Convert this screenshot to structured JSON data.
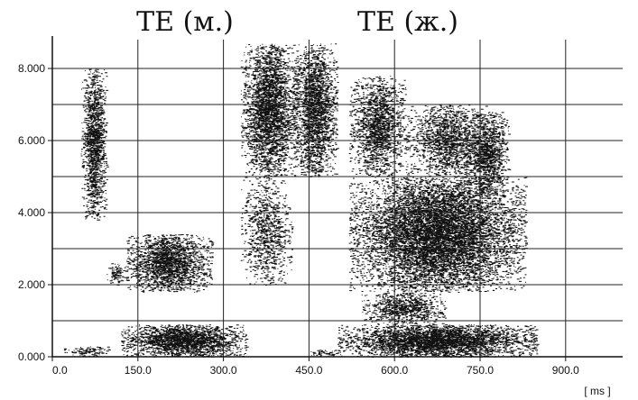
{
  "chart_data": {
    "type": "heatmap",
    "titles": [
      {
        "text": "TE (м.)",
        "x_center": 205
      },
      {
        "text": "TE (ж.)",
        "x_center": 652
      }
    ],
    "x_unit_label": "[ ms ]",
    "xlim": [
      0,
      1000
    ],
    "ylim": [
      0,
      8800
    ],
    "x_ticks": [
      {
        "value": 0,
        "label": "0.0"
      },
      {
        "value": 150,
        "label": "150.0"
      },
      {
        "value": 300,
        "label": "300.0"
      },
      {
        "value": 450,
        "label": "450.0"
      },
      {
        "value": 600,
        "label": "600.0"
      },
      {
        "value": 750,
        "label": "750.0"
      },
      {
        "value": 900,
        "label": "900.0"
      }
    ],
    "y_ticks": [
      {
        "value": 0,
        "label": "0.000"
      },
      {
        "value": 2000,
        "label": "2.000"
      },
      {
        "value": 4000,
        "label": "4.000"
      },
      {
        "value": 6000,
        "label": "6.000"
      },
      {
        "value": 8000,
        "label": "8.000"
      }
    ],
    "y_minor_ticks": [
      1000,
      3000,
      5000,
      7000
    ],
    "grid": true,
    "energy_regions": [
      {
        "t": [
          50,
          95
        ],
        "f": [
          3800,
          8000
        ],
        "density": 0.55
      },
      {
        "t": [
          20,
          100
        ],
        "f": [
          0,
          300
        ],
        "density": 0.35
      },
      {
        "t": [
          95,
          130
        ],
        "f": [
          2000,
          2600
        ],
        "density": 0.35
      },
      {
        "t": [
          130,
          280
        ],
        "f": [
          1800,
          3400
        ],
        "density": 0.6
      },
      {
        "t": [
          120,
          340
        ],
        "f": [
          0,
          900
        ],
        "density": 0.8
      },
      {
        "t": [
          330,
          430
        ],
        "f": [
          5000,
          8700
        ],
        "density": 0.6
      },
      {
        "t": [
          330,
          420
        ],
        "f": [
          2000,
          5000
        ],
        "density": 0.25
      },
      {
        "t": [
          420,
          500
        ],
        "f": [
          5000,
          8700
        ],
        "density": 0.55
      },
      {
        "t": [
          440,
          510
        ],
        "f": [
          0,
          200
        ],
        "density": 0.3
      },
      {
        "t": [
          520,
          620
        ],
        "f": [
          5000,
          7800
        ],
        "density": 0.45
      },
      {
        "t": [
          620,
          760
        ],
        "f": [
          5000,
          7000
        ],
        "density": 0.4
      },
      {
        "t": [
          720,
          800
        ],
        "f": [
          4500,
          6800
        ],
        "density": 0.5
      },
      {
        "t": [
          520,
          830
        ],
        "f": [
          1800,
          5000
        ],
        "density": 0.65
      },
      {
        "t": [
          540,
          690
        ],
        "f": [
          900,
          1800
        ],
        "density": 0.45
      },
      {
        "t": [
          500,
          850
        ],
        "f": [
          0,
          900
        ],
        "density": 0.85
      }
    ]
  }
}
